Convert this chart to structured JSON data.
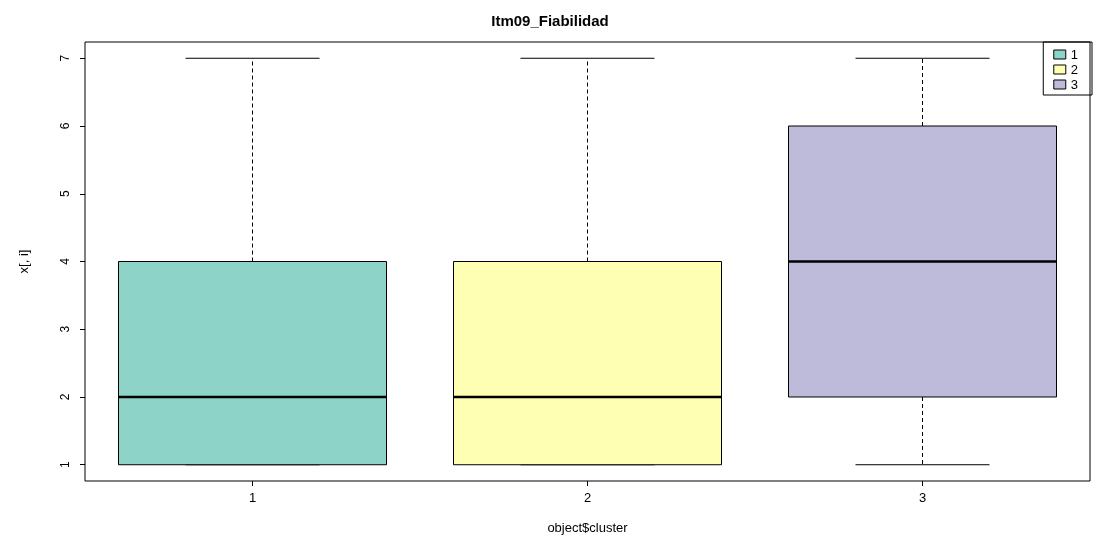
{
  "chart_data": {
    "type": "box",
    "title": "Itm09_Fiabilidad",
    "xlabel": "object$cluster",
    "ylabel": "x[, i]",
    "categories": [
      "1",
      "2",
      "3"
    ],
    "series": [
      {
        "name": "1",
        "color": "#8dd3c7",
        "boxes": [
          {
            "low": 1,
            "q1": 1,
            "median": 2,
            "q3": 4,
            "high": 7
          },
          null,
          null
        ]
      },
      {
        "name": "2",
        "color": "#ffffb3",
        "boxes": [
          null,
          {
            "low": 1,
            "q1": 1,
            "median": 2,
            "q3": 4,
            "high": 7
          },
          null
        ]
      },
      {
        "name": "3",
        "color": "#bebada",
        "boxes": [
          null,
          null,
          {
            "low": 1,
            "q1": 2,
            "median": 4,
            "q3": 6,
            "high": 7
          }
        ]
      }
    ],
    "ylim": [
      0.76,
      7.24
    ],
    "yticks": [
      1,
      2,
      3,
      4,
      5,
      6,
      7
    ],
    "grid": false,
    "legend": "top right"
  }
}
